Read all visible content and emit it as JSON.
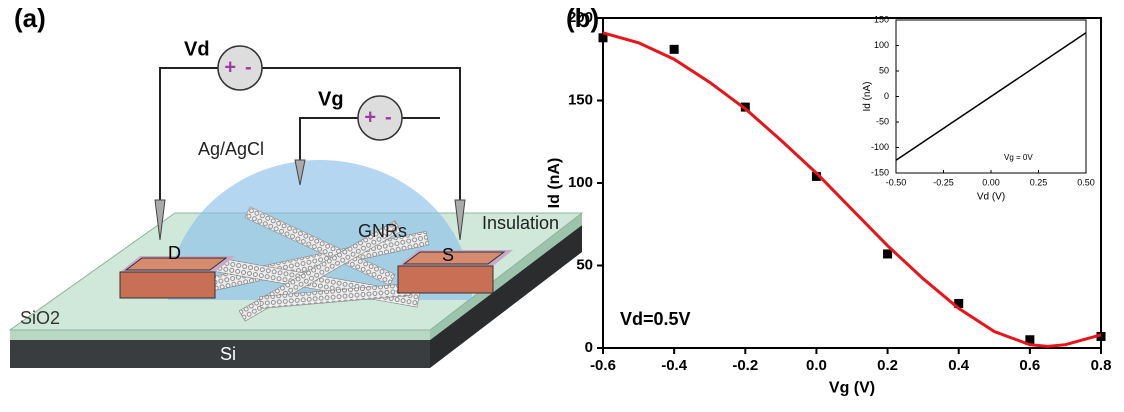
{
  "panel_labels": [
    "(a)",
    "(b)"
  ],
  "schematic": {
    "drain_voltage": "Vd",
    "gate_voltage": "Vg",
    "signs": [
      "+",
      "-"
    ],
    "reference_electrode": "Ag/AgCl",
    "channel": "GNRs",
    "insulation": "Insulation",
    "drain": "D",
    "source": "S",
    "oxide": "SiO2",
    "substrate": "Si"
  },
  "chart_data": [
    {
      "type": "scatter",
      "x_label": "Vg (V)",
      "y_label": "Id (nA)",
      "annotation": "Vd=0.5V",
      "xlim": [
        -0.6,
        0.8
      ],
      "ylim": [
        0,
        200
      ],
      "xticks": [
        -0.6,
        -0.4,
        -0.2,
        {
          "value": 0,
          "label": "0.0"
        },
        0.2,
        0.4,
        0.6,
        0.8
      ],
      "yticks": [
        0,
        50,
        100,
        150,
        200
      ],
      "series": [
        {
          "type": "scatter",
          "color": "#000000",
          "x": [
            -0.6,
            -0.4,
            -0.2,
            0,
            0.2,
            0.4,
            0.6,
            0.8
          ],
          "values": [
            188,
            181,
            146,
            104,
            57,
            27,
            5,
            7
          ]
        },
        {
          "type": "line",
          "color": "#e8141a",
          "x": [
            -0.6,
            -0.5,
            -0.4,
            -0.3,
            -0.2,
            -0.1,
            0,
            0.1,
            0.2,
            0.3,
            0.4,
            0.5,
            0.6,
            0.65,
            0.7,
            0.8
          ],
          "values": [
            191,
            185,
            175,
            161,
            145,
            126,
            106,
            84,
            62,
            42,
            24,
            10,
            2,
            1,
            2,
            8
          ]
        }
      ]
    },
    {
      "type": "line",
      "x_label": "Vd (V)",
      "y_label": "Id (nA)",
      "annotation": "Vg = 0V",
      "xlim": [
        -0.5,
        0.5
      ],
      "ylim": [
        -150,
        150
      ],
      "xticks": [
        {
          "value": -0.5,
          "label": "-0.50"
        },
        {
          "value": -0.25,
          "label": "-0.25"
        },
        {
          "value": 0,
          "label": "0.00"
        },
        {
          "value": 0.25,
          "label": "0.25"
        },
        {
          "value": 0.5,
          "label": "0.50"
        }
      ],
      "yticks": [
        -150,
        -100,
        -50,
        0,
        50,
        100,
        150
      ],
      "series": [
        {
          "type": "line",
          "color": "#000000",
          "x": [
            -0.5,
            0.5
          ],
          "values": [
            -125,
            125
          ]
        }
      ]
    }
  ]
}
